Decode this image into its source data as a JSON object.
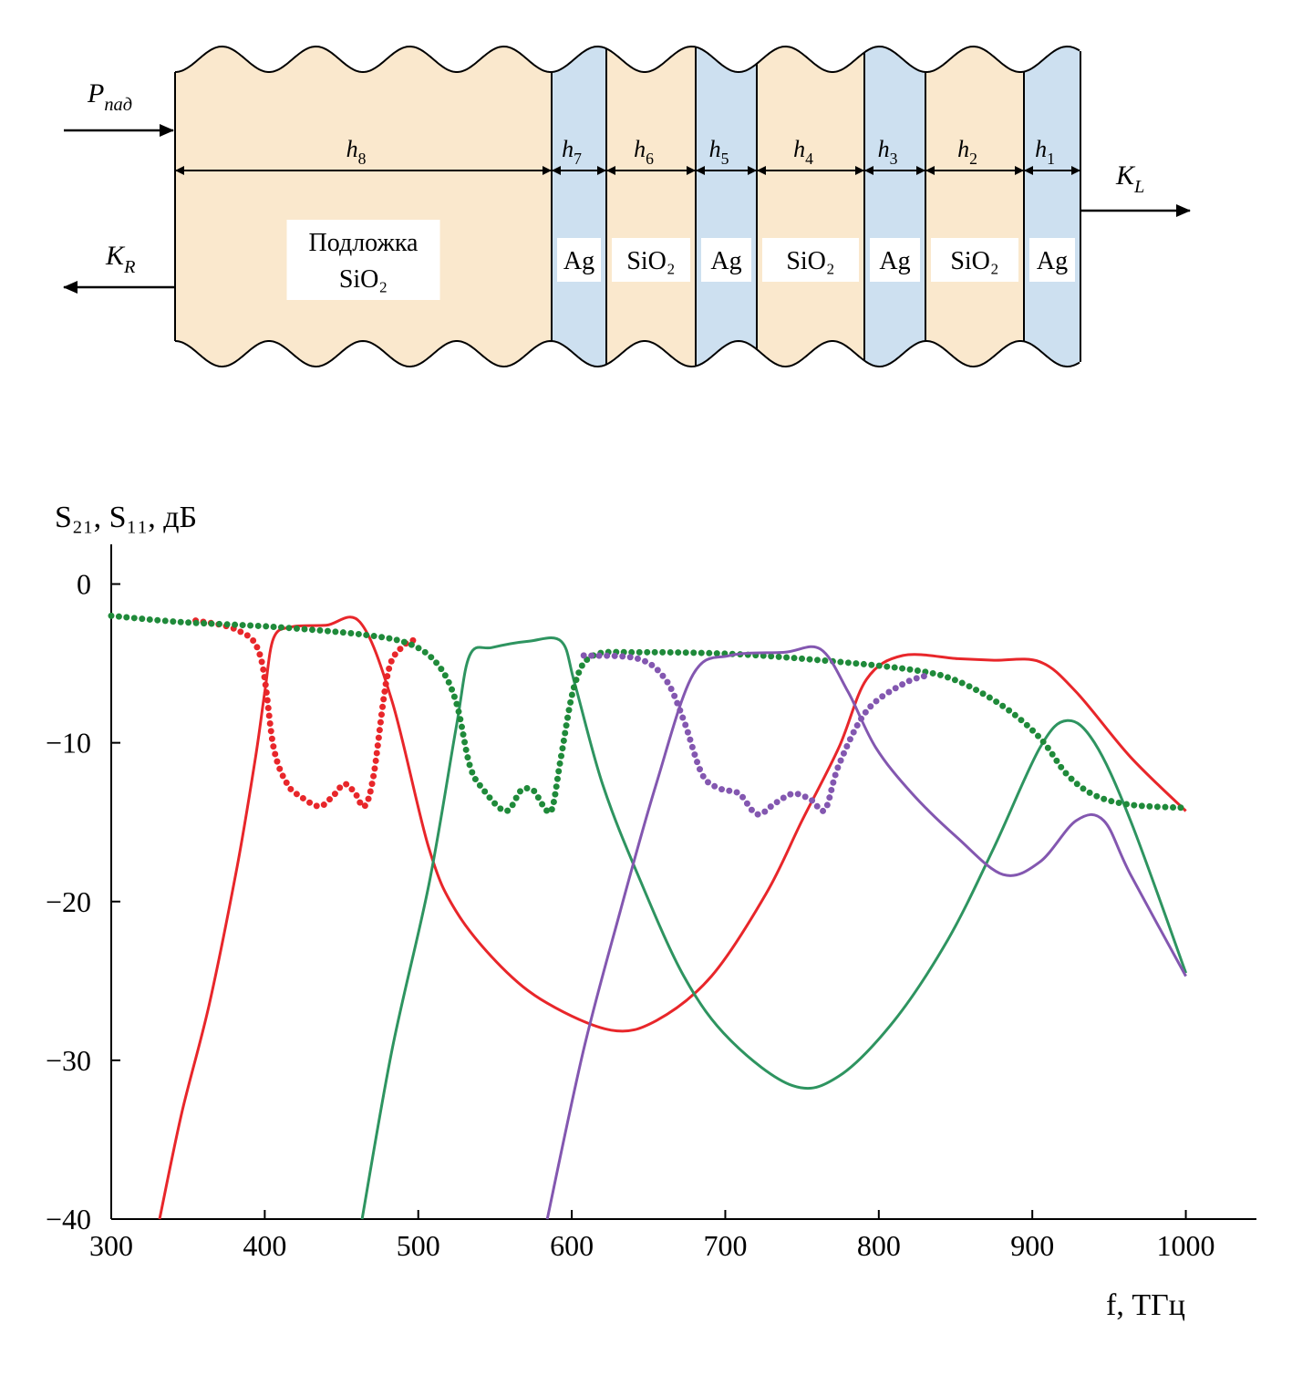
{
  "diagram": {
    "incident": {
      "base": "P",
      "sub": "пад"
    },
    "reflected": {
      "base": "K",
      "sub": "R"
    },
    "transmitted": {
      "base": "K",
      "sub": "L"
    },
    "layers": [
      {
        "thickness": {
          "base": "h",
          "sub": "8"
        },
        "material": [
          "Подложка",
          "SiO₂"
        ],
        "color": "#fae8cd"
      },
      {
        "thickness": {
          "base": "h",
          "sub": "7"
        },
        "material": [
          "Ag"
        ],
        "color": "#cde0f0"
      },
      {
        "thickness": {
          "base": "h",
          "sub": "6"
        },
        "material": [
          "SiO₂"
        ],
        "color": "#fae8cd"
      },
      {
        "thickness": {
          "base": "h",
          "sub": "5"
        },
        "material": [
          "Ag"
        ],
        "color": "#cde0f0"
      },
      {
        "thickness": {
          "base": "h",
          "sub": "4"
        },
        "material": [
          "SiO₂"
        ],
        "color": "#fae8cd"
      },
      {
        "thickness": {
          "base": "h",
          "sub": "3"
        },
        "material": [
          "Ag"
        ],
        "color": "#cde0f0"
      },
      {
        "thickness": {
          "base": "h",
          "sub": "2"
        },
        "material": [
          "SiO₂"
        ],
        "color": "#fae8cd"
      },
      {
        "thickness": {
          "base": "h",
          "sub": "1"
        },
        "material": [
          "Ag"
        ],
        "color": "#cde0f0"
      }
    ]
  },
  "chart_data": {
    "type": "line",
    "ylabel": "S₂₁, S₁₁, дБ",
    "xlabel": "f, ТГц",
    "xlim": [
      300,
      1046
    ],
    "ylim": [
      -40,
      2.5
    ],
    "xticks": [
      300,
      400,
      500,
      600,
      700,
      800,
      900,
      1000
    ],
    "yticks": [
      0,
      {
        "value": -10,
        "label": "−10"
      },
      {
        "value": -20,
        "label": "−20"
      },
      {
        "value": -30,
        "label": "−30"
      },
      {
        "value": -40,
        "label": "−40"
      }
    ],
    "series": [
      {
        "color": "#e8262a",
        "style": "solid",
        "x": [
          331.5,
          346,
          364,
          382,
          394,
          400,
          405.8,
          417.6,
          440,
          462,
          483,
          506.8,
          524.6,
          554,
          584,
          625.6,
          655,
          691,
          726.6,
          750,
          774,
          792,
          815.7,
          851.4,
          875,
          904.9,
          928.6,
          964,
          1000
        ],
        "values": [
          -40,
          -33.3,
          -26.4,
          -17.8,
          -10.9,
          -6.8,
          -3.4,
          -2.7,
          -2.6,
          -2.4,
          -7.4,
          -16.6,
          -20.6,
          -24.1,
          -26.4,
          -28.1,
          -27.5,
          -24.7,
          -19.5,
          -14.9,
          -10.3,
          -6.0,
          -4.5,
          -4.7,
          -4.8,
          -4.9,
          -6.8,
          -10.9,
          -14.3
        ]
      },
      {
        "color": "#e8262a",
        "style": "dotted",
        "x": [
          355,
          382,
          397,
          405.8,
          414.7,
          423.6,
          435.5,
          444,
          452,
          459,
          465,
          471,
          480,
          489,
          497.9
        ],
        "values": [
          -2.3,
          -2.9,
          -4.5,
          -10.3,
          -12.6,
          -13.4,
          -14.0,
          -13.4,
          -12.6,
          -13.2,
          -14.0,
          -12.0,
          -5.7,
          -4.0,
          -3.5
        ]
      },
      {
        "color": "#2e9460",
        "style": "solid",
        "x": [
          463.4,
          483,
          507,
          524.6,
          533.5,
          548,
          572,
          593,
          602,
          620,
          643,
          673,
          703,
          744,
          774,
          810,
          845,
          875,
          905,
          922.7,
          940.5,
          964,
          1000
        ],
        "values": [
          -40,
          -29.3,
          -18.9,
          -9.1,
          -4.5,
          -4.0,
          -3.6,
          -3.6,
          -6.3,
          -12.6,
          -18.3,
          -24.7,
          -28.7,
          -31.6,
          -31.0,
          -27.5,
          -22.4,
          -16.6,
          -10.3,
          -8.6,
          -10.0,
          -14.9,
          -24.5
        ]
      },
      {
        "color": "#1f8a3a",
        "style": "dotted",
        "x": [
          300,
          346,
          406,
          465,
          495,
          513,
          524.6,
          533.5,
          542,
          557,
          567,
          575,
          581,
          587,
          593,
          602,
          614,
          643,
          703,
          762,
          821.7,
          851,
          881,
          905,
          922.7,
          940.5,
          964,
          1000
        ],
        "values": [
          -2.0,
          -2.4,
          -2.7,
          -3.2,
          -3.8,
          -5.1,
          -7.4,
          -11.4,
          -12.9,
          -14.3,
          -13.0,
          -13.0,
          -13.9,
          -14.2,
          -10.9,
          -6.3,
          -4.5,
          -4.3,
          -4.4,
          -4.8,
          -5.4,
          -6.1,
          -7.7,
          -9.7,
          -12.0,
          -13.3,
          -13.9,
          -14.1
        ]
      },
      {
        "color": "#8357b0",
        "style": "solid",
        "x": [
          584,
          607.8,
          631.6,
          655,
          679,
          703,
          738.5,
          762,
          780,
          798,
          821.7,
          851.4,
          881,
          905,
          928.6,
          946.5,
          964,
          1000
        ],
        "values": [
          -40,
          -29.3,
          -20.6,
          -12.6,
          -5.7,
          -4.5,
          -4.3,
          -4.1,
          -6.8,
          -10.3,
          -13.2,
          -16.0,
          -18.3,
          -17.5,
          -14.9,
          -14.9,
          -18.3,
          -24.7
        ]
      },
      {
        "color": "#8357b0",
        "style": "dotted",
        "x": [
          607.8,
          643,
          661,
          673,
          685,
          697,
          709,
          720.7,
          732.6,
          744.4,
          756,
          765,
          774,
          792,
          815.7,
          833.6
        ],
        "values": [
          -4.5,
          -4.7,
          -6.0,
          -8.6,
          -12.0,
          -12.9,
          -13.2,
          -14.5,
          -13.8,
          -13.2,
          -13.6,
          -14.2,
          -11.4,
          -8.0,
          -6.3,
          -5.7
        ]
      }
    ]
  }
}
